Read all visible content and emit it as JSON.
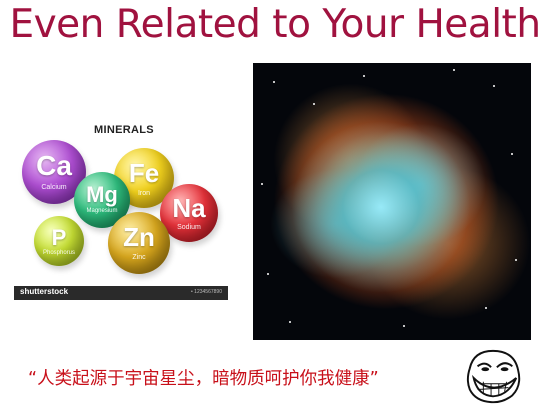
{
  "slide": {
    "title": "Even Related to Your Health",
    "quote": "“人类起源于宇宙星尘，暗物质呵护你我健康”"
  },
  "minerals_image": {
    "heading": "MINERALS",
    "elements": [
      {
        "symbol": "Ca",
        "name": "Calcium",
        "color": "#b04fd4"
      },
      {
        "symbol": "Mg",
        "name": "Magnesium",
        "color": "#2fbf7f"
      },
      {
        "symbol": "Fe",
        "name": "Iron",
        "color": "#f2d21e"
      },
      {
        "symbol": "Na",
        "name": "Sodium",
        "color": "#e8323a"
      },
      {
        "symbol": "P",
        "name": "Phosphorus",
        "color": "#c9e235"
      },
      {
        "symbol": "Zn",
        "name": "Zinc",
        "color": "#d9a81e"
      }
    ],
    "brand": "shutterstock",
    "footer_code": "• 1234567890"
  },
  "nebula_image": {
    "subject": "crab-nebula-image"
  },
  "colors": {
    "title": "#a0123f",
    "quote": "#c8101a"
  }
}
